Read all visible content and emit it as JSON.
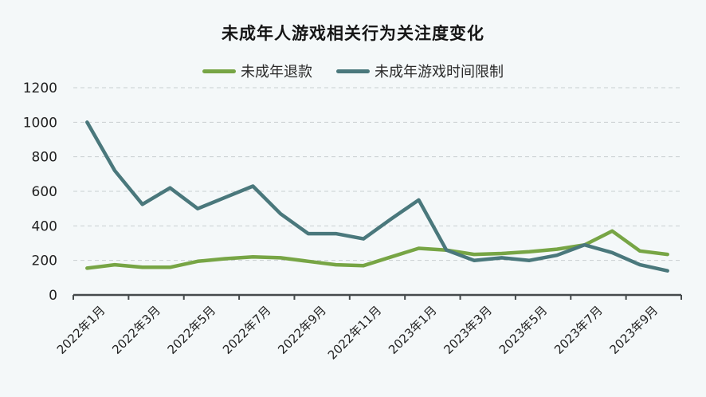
{
  "chart_data": {
    "type": "line",
    "title": "未成年人游戏相关行为关注度变化",
    "xlabel": "",
    "ylabel": "",
    "ylim": [
      0,
      1200
    ],
    "yticks": [
      0,
      200,
      400,
      600,
      800,
      1000,
      1200
    ],
    "grid": true,
    "legend_position": "top",
    "x": [
      "2022年1月",
      "2022年2月",
      "2022年3月",
      "2022年4月",
      "2022年5月",
      "2022年6月",
      "2022年7月",
      "2022年8月",
      "2022年9月",
      "2022年10月",
      "2022年11月",
      "2022年12月",
      "2023年1月",
      "2023年2月",
      "2023年3月",
      "2023年4月",
      "2023年5月",
      "2023年6月",
      "2023年7月",
      "2023年8月",
      "2023年9月",
      "2023年10月"
    ],
    "xtick_labels": [
      "2022年1月",
      "2022年3月",
      "2022年5月",
      "2022年7月",
      "2022年9月",
      "2022年11月",
      "2023年1月",
      "2023年3月",
      "2023年5月",
      "2023年7月",
      "2023年9月"
    ],
    "series": [
      {
        "name": "未成年退款",
        "color": "#77a545",
        "values": [
          155,
          175,
          160,
          160,
          195,
          210,
          220,
          215,
          195,
          175,
          170,
          220,
          270,
          260,
          235,
          240,
          250,
          265,
          290,
          370,
          255,
          235
        ]
      },
      {
        "name": "未成年游戏时间限制",
        "color": "#4a787c",
        "values": [
          1000,
          720,
          525,
          620,
          500,
          565,
          630,
          470,
          355,
          355,
          325,
          440,
          550,
          260,
          200,
          215,
          200,
          230,
          290,
          245,
          175,
          140
        ]
      }
    ]
  },
  "header": {
    "title": "未成年人游戏相关行为关注度变化"
  },
  "legend": [
    {
      "label": "未成年退款",
      "color": "#77a545"
    },
    {
      "label": "未成年游戏时间限制",
      "color": "#4a787c"
    }
  ]
}
